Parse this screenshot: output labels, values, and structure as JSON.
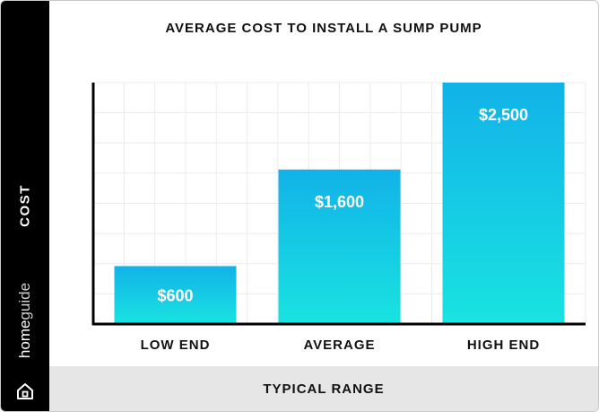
{
  "chart_data": {
    "type": "bar",
    "title": "AVERAGE COST TO INSTALL A SUMP PUMP",
    "xlabel": "TYPICAL RANGE",
    "ylabel": "COST",
    "categories": [
      "LOW END",
      "AVERAGE",
      "HIGH END"
    ],
    "values": [
      600,
      1600,
      2500
    ],
    "value_labels": [
      "$600",
      "$1,600",
      "$2,500"
    ],
    "ylim": [
      0,
      2500
    ],
    "grid": true,
    "bar_gradient": [
      "#12b2e8",
      "#19e3e0"
    ]
  },
  "brand": {
    "part1": "home",
    "part2": "guide",
    "icon": "house-logo-icon"
  }
}
